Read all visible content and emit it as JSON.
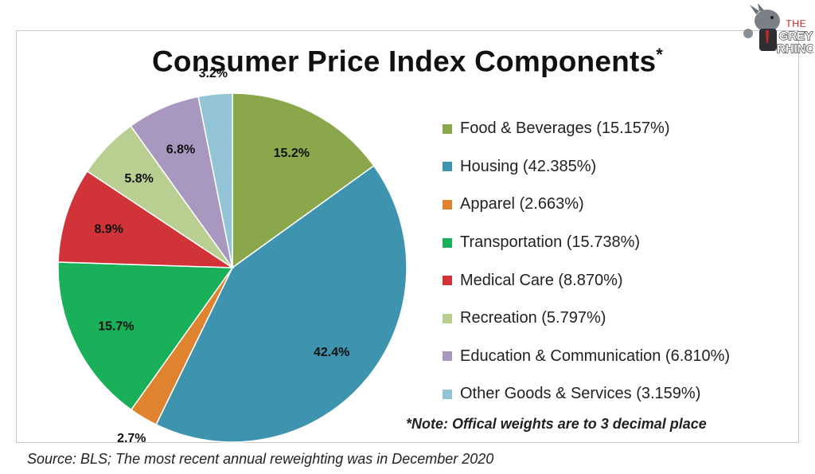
{
  "title": "Consumer Price Index Components",
  "title_mark": "*",
  "note": "*Note: Offical weights are to 3 decimal place",
  "source": "Source: BLS; The most recent annual reweighting was in December 2020",
  "logo": {
    "line1": "THE",
    "line2": "GREY",
    "line3": "RHINO"
  },
  "chart_data": {
    "type": "pie",
    "start_angle_deg": 0,
    "direction": "clockwise",
    "legend_position": "right",
    "categories": [
      "Food & Beverages (15.157%)",
      "Housing (42.385%)",
      "Apparel (2.663%)",
      "Transportation (15.738%)",
      "Medical Care (8.870%)",
      "Recreation (5.797%)",
      "Education & Communication (6.810%)",
      "Other Goods & Services (3.159%)"
    ],
    "values": [
      15.157,
      42.385,
      2.663,
      15.738,
      8.87,
      5.797,
      6.81,
      3.159
    ],
    "data_labels": [
      "15.2%",
      "42.4%",
      "2.7%",
      "15.7%",
      "8.9%",
      "5.8%",
      "6.8%",
      "3.2%"
    ],
    "colors": [
      "#8AA84B",
      "#3E94AF",
      "#E0832F",
      "#1AB05A",
      "#D13438",
      "#B9CF92",
      "#A897BF",
      "#93C4D6"
    ]
  }
}
